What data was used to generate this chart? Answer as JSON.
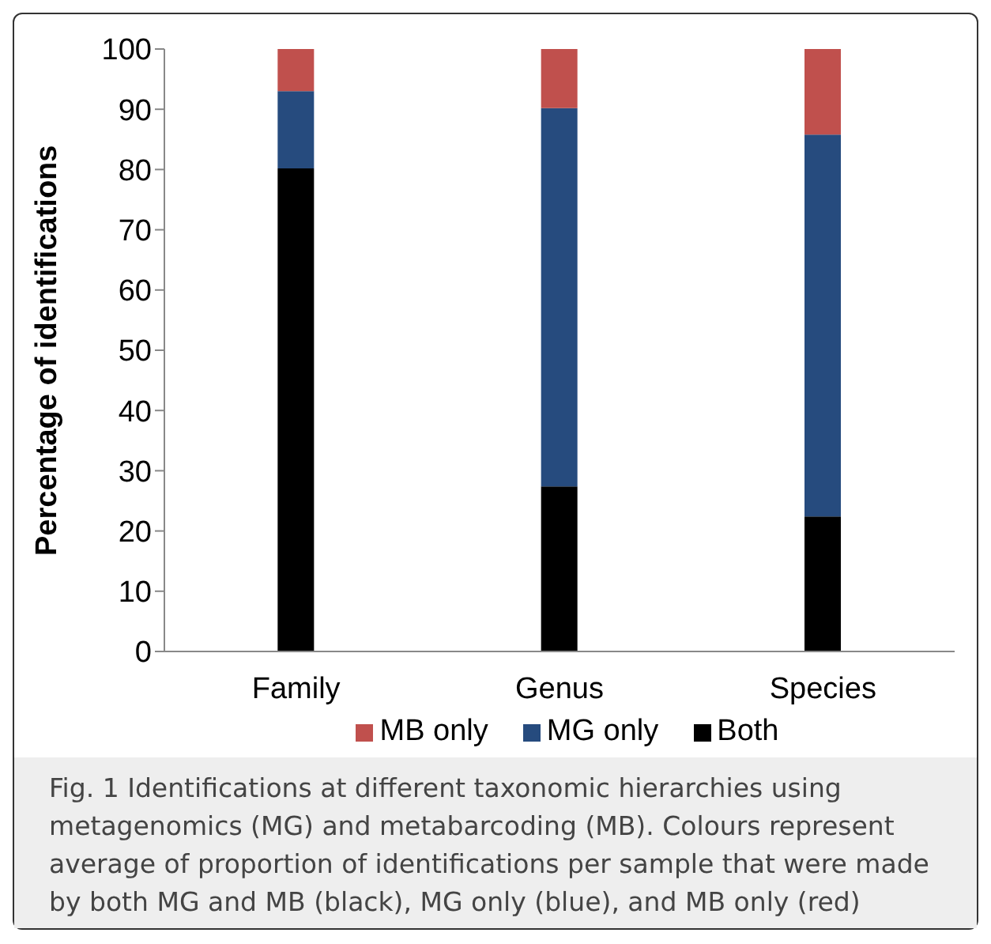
{
  "chart_data": {
    "type": "bar",
    "stacked": true,
    "ylabel": "Percentage of identifications",
    "categories": [
      "Family",
      "Genus",
      "Species"
    ],
    "series": [
      {
        "name": "Both",
        "color": "#000000",
        "values": [
          80.2,
          27.4,
          22.4
        ]
      },
      {
        "name": "MG only",
        "color": "#264b7e",
        "values": [
          12.8,
          62.8,
          63.4
        ]
      },
      {
        "name": "MB only",
        "color": "#c0504d",
        "values": [
          7,
          9.8,
          14.2
        ]
      }
    ],
    "ylim": [
      0,
      100
    ],
    "yticks": [
      0,
      10,
      20,
      30,
      40,
      50,
      60,
      70,
      80,
      90,
      100
    ],
    "grid": false,
    "legend": "bottom",
    "annotations": [
      "Fig. 1 Identifications at different taxonomic hierarchies using metagenomics (MG) and metabarcoding (MB). Colours represent average of proportion of identifications per sample that were made by both MG and MB (black), MG only (blue), and MB only (red)"
    ]
  }
}
